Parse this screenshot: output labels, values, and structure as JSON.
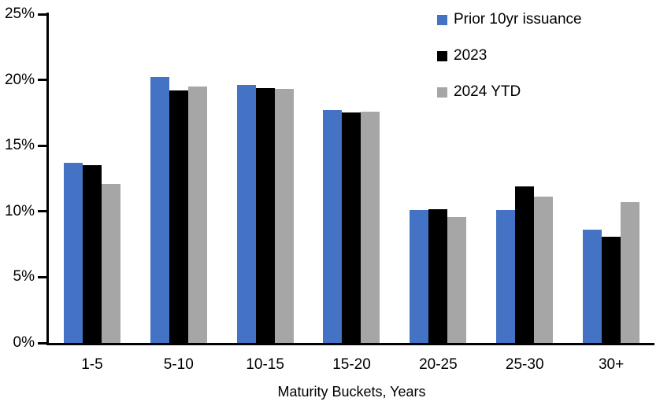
{
  "chart_data": {
    "type": "bar",
    "title": "",
    "xlabel": "Maturity Buckets, Years",
    "ylabel": "",
    "ylim": [
      0,
      25
    ],
    "ytick_step": 5,
    "ytick_labels": [
      "0%",
      "5%",
      "10%",
      "15%",
      "20%",
      "25%"
    ],
    "grid": false,
    "legend_position": "top-right",
    "categories": [
      "1-5",
      "5-10",
      "10-15",
      "15-20",
      "20-25",
      "25-30",
      "30+"
    ],
    "series": [
      {
        "name": "Prior 10yr issuance",
        "color": "#4472C4",
        "values": [
          13.7,
          20.2,
          19.6,
          17.7,
          10.1,
          10.1,
          8.6
        ]
      },
      {
        "name": "2023",
        "color": "#000000",
        "values": [
          13.5,
          19.2,
          19.4,
          17.5,
          10.2,
          11.9,
          8.1
        ]
      },
      {
        "name": "2024 YTD",
        "color": "#A6A6A6",
        "values": [
          12.1,
          19.5,
          19.3,
          17.6,
          9.6,
          11.1,
          10.7
        ]
      }
    ],
    "axis_color": "#000000",
    "background_color": "#FFFFFF"
  }
}
